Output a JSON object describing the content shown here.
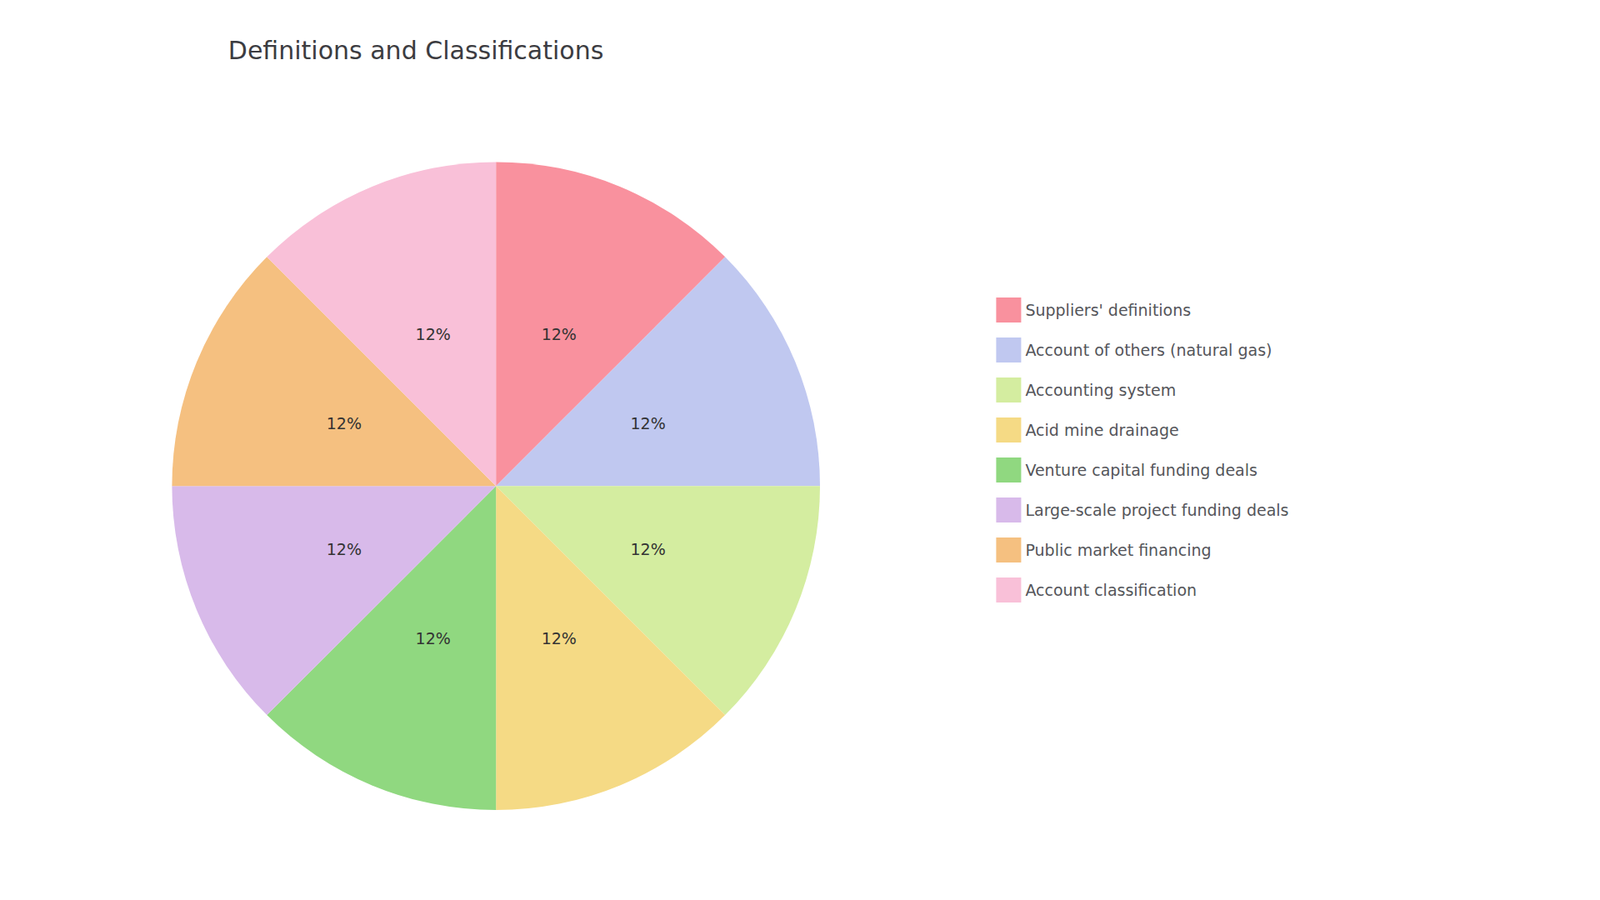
{
  "chart_data": {
    "type": "pie",
    "title": "Definitions and Classifications",
    "categories": [
      "Suppliers' definitions",
      "Account of others (natural gas)",
      "Accounting system",
      "Acid mine drainage",
      "Venture capital funding deals",
      "Large-scale project funding deals",
      "Public market financing",
      "Account classification"
    ],
    "values": [
      12,
      12,
      12,
      12,
      12,
      12,
      12,
      12
    ],
    "value_labels": [
      "12%",
      "12%",
      "12%",
      "12%",
      "12%",
      "12%",
      "12%",
      "12%"
    ],
    "colors": [
      "#F9919E",
      "#C0C8F0",
      "#D4EDA0",
      "#F5DA85",
      "#90D880",
      "#D8BAEA",
      "#F5C080",
      "#F9C0D8"
    ],
    "legend": "right"
  }
}
